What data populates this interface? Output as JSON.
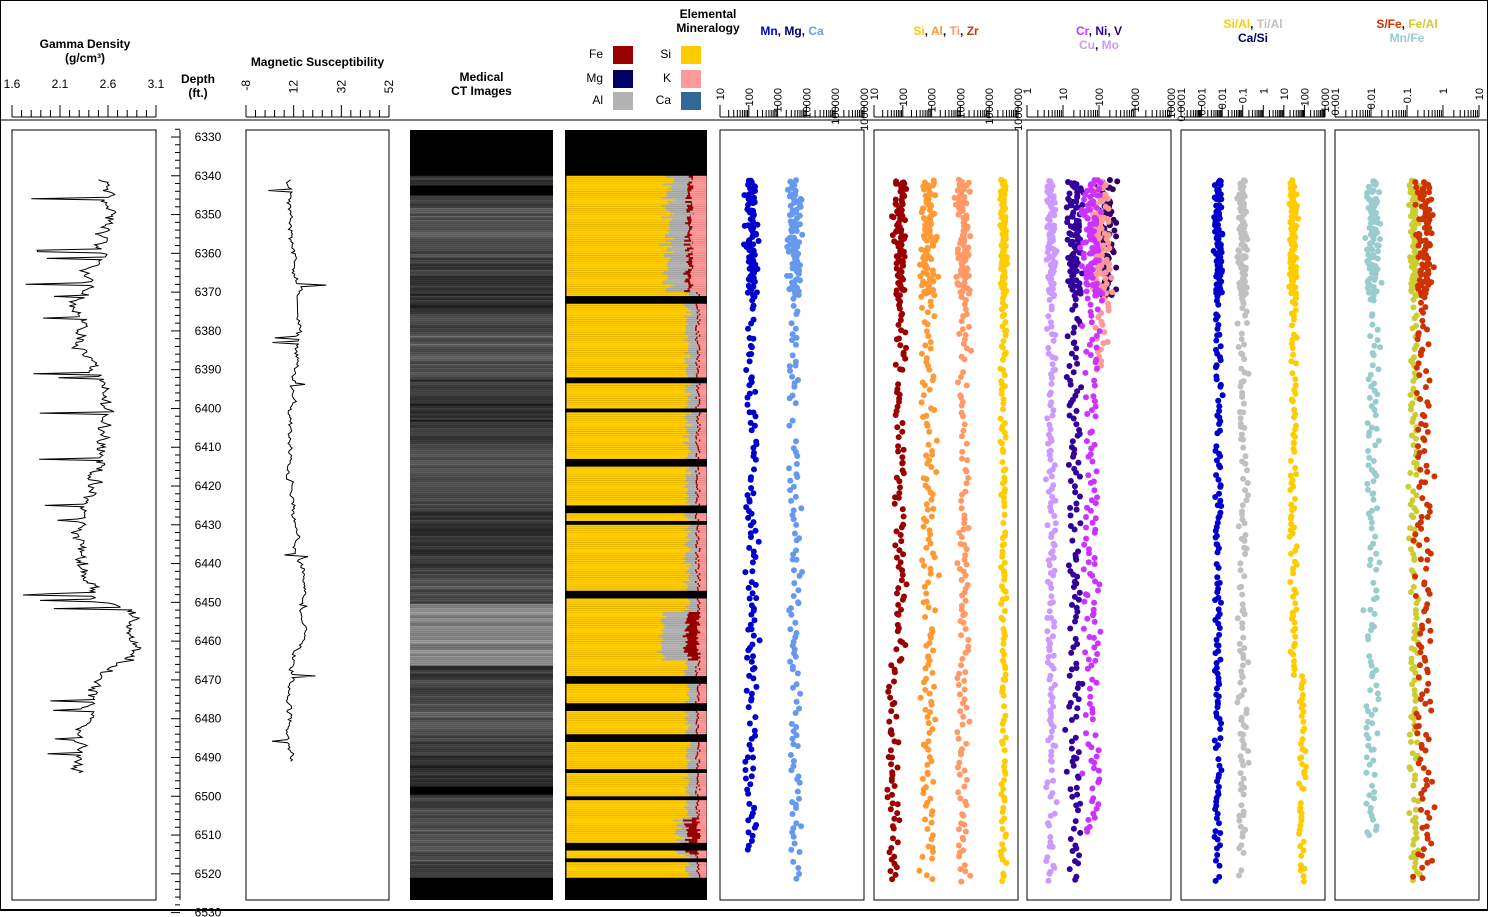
{
  "colors": {
    "Fe": "#990000",
    "Mg": "#000066",
    "Al": "#b3b3b3",
    "Si": "#ffcc00",
    "K": "#ff9999",
    "Ca": "#336699",
    "Mn": "#0000cc",
    "Ca_pt": "#6699ee",
    "Si_pt": "#ffcc00",
    "Al_pt": "#ff9933",
    "Ti_pt": "#ff9966",
    "Zr_pt": "#990000",
    "Cr": "#cc33ff",
    "Ni": "#330099",
    "V": "#330066",
    "Cu": "#cc99ff",
    "Mo": "#ff9999",
    "SiAl": "#ffcc00",
    "TiAl": "#c0c0c0",
    "CaSi": "#0000cc",
    "SFe": "#cc3300",
    "FeAl": "#cccc33",
    "MnFe": "#99cccc"
  },
  "chart_data": [
    {
      "type": "line",
      "panel": "gamma",
      "title_lines": [
        "Gamma Density",
        "(g/cm³)"
      ],
      "xticks": [
        "1.6",
        "2.1",
        "2.6",
        "3.1"
      ],
      "xlim": [
        1.6,
        3.1
      ],
      "ylim": [
        6328,
        6531
      ],
      "data_range": [
        6341,
        6494
      ]
    },
    {
      "type": "axis",
      "panel": "depth",
      "title_lines": [
        "Depth",
        "(ft.)"
      ],
      "yticks": [
        "6330",
        "6340",
        "6350",
        "6360",
        "6370",
        "6380",
        "6390",
        "6400",
        "6410",
        "6420",
        "6430",
        "6440",
        "6450",
        "6460",
        "6470",
        "6480",
        "6490",
        "6500",
        "6510",
        "6520",
        "6530"
      ]
    },
    {
      "type": "line",
      "panel": "magsus",
      "title_lines": [
        "Magnetic Susceptibility"
      ],
      "xticks": [
        "-8",
        "12",
        "32",
        "52"
      ],
      "xlim": [
        -8,
        52
      ],
      "ylim": [
        6328,
        6531
      ],
      "data_range": [
        6341,
        6491
      ]
    },
    {
      "type": "image",
      "panel": "ct",
      "title_lines": [
        "Medical",
        "CT Images"
      ],
      "core_range": [
        6338,
        6522
      ]
    },
    {
      "type": "area",
      "panel": "mineralogy",
      "title_lines": [
        "Elemental",
        "Mineralogy"
      ],
      "legend": [
        "Fe",
        "Si",
        "Mg",
        "K",
        "Al",
        "Ca"
      ],
      "core_range": [
        6338,
        6522
      ]
    },
    {
      "type": "scatter",
      "panel": "mnmgca",
      "title_parts": [
        [
          "Mn",
          "Mn"
        ],
        [
          ", ",
          "sep"
        ],
        [
          "Mg",
          "Mg"
        ],
        [
          ", ",
          "sep"
        ],
        [
          "Ca",
          "Ca_pt"
        ]
      ],
      "xticks": [
        "10",
        "100",
        "1000",
        "10000",
        "100000",
        "1000000"
      ],
      "log_decades": 6,
      "series": [
        {
          "name": "Mn",
          "color": "Mn",
          "range": [
            6341,
            6513
          ],
          "center": 0.22,
          "spread": 0.06
        },
        {
          "name": "Ca",
          "color": "Ca_pt",
          "range": [
            6341,
            6521
          ],
          "center": 0.52,
          "spread": 0.07
        }
      ]
    },
    {
      "type": "scatter",
      "panel": "sialtizr",
      "title_parts": [
        [
          "Si",
          "Si_pt"
        ],
        [
          ", ",
          "sep"
        ],
        [
          "Al",
          "Al_pt"
        ],
        [
          ", ",
          "sep"
        ],
        [
          "Ti",
          "Ti_pt"
        ],
        [
          ", ",
          "sep"
        ],
        [
          "Zr",
          "SFe"
        ]
      ],
      "xticks": [
        "10",
        "100",
        "1000",
        "10000",
        "100000",
        "1000000"
      ],
      "log_decades": 6,
      "series": [
        {
          "name": "Zr",
          "color": "Zr_pt",
          "range": [
            6341,
            6521
          ],
          "center": 0.18,
          "spread": 0.06
        },
        {
          "name": "Al",
          "color": "Al_pt",
          "range": [
            6341,
            6521
          ],
          "center": 0.38,
          "spread": 0.08
        },
        {
          "name": "Ti",
          "color": "Ti_pt",
          "range": [
            6341,
            6521
          ],
          "center": 0.62,
          "spread": 0.07
        },
        {
          "name": "Si",
          "color": "Si_pt",
          "range": [
            6341,
            6521
          ],
          "center": 0.9,
          "spread": 0.03
        }
      ]
    },
    {
      "type": "scatter",
      "panel": "crnivcumo",
      "title_parts": [
        [
          "Cr",
          "Cr"
        ],
        [
          ", ",
          "sep"
        ],
        [
          "Ni",
          "Ni"
        ],
        [
          ", ",
          "sep"
        ],
        [
          "V",
          "V"
        ],
        [
          "\n",
          "br"
        ],
        [
          "Cu",
          "Cu"
        ],
        [
          ", ",
          "sep"
        ],
        [
          "Mo",
          "Cu"
        ]
      ],
      "xticks": [
        "1",
        "10",
        "100",
        "1000",
        "10000"
      ],
      "log_decades": 4,
      "series": [
        {
          "name": "Cu",
          "color": "Cu",
          "range": [
            6341,
            6521
          ],
          "center": 0.17,
          "spread": 0.05
        },
        {
          "name": "Ni",
          "color": "Ni",
          "range": [
            6341,
            6521
          ],
          "center": 0.33,
          "spread": 0.07
        },
        {
          "name": "V",
          "color": "V",
          "range": [
            6341,
            6371
          ],
          "center": 0.55,
          "spread": 0.1
        },
        {
          "name": "Mo",
          "color": "Mo",
          "range": [
            6341,
            6390
          ],
          "center": 0.52,
          "spread": 0.1
        },
        {
          "name": "Cr",
          "color": "Cr",
          "range": [
            6341,
            6510
          ],
          "center": 0.45,
          "spread": 0.1
        }
      ]
    },
    {
      "type": "scatter",
      "panel": "ratios1",
      "title_parts": [
        [
          "Si/Al",
          "SiAl"
        ],
        [
          ", ",
          "sep"
        ],
        [
          "Ti/Al",
          "TiAl"
        ],
        [
          "\n",
          "br"
        ],
        [
          "Ca/Si",
          "Mg"
        ]
      ],
      "xticks": [
        "0.0001",
        "0.001",
        "0.01",
        "0.1",
        "1",
        "10",
        "100",
        "1000"
      ],
      "log_decades": 7,
      "series": [
        {
          "name": "Ca/Si",
          "color": "CaSi",
          "range": [
            6341,
            6521
          ],
          "center": 0.26,
          "spread": 0.04
        },
        {
          "name": "Ti/Al",
          "color": "TiAl",
          "range": [
            6341,
            6521
          ],
          "center": 0.43,
          "spread": 0.05
        },
        {
          "name": "Si/Al",
          "color": "SiAl",
          "range": [
            6341,
            6521
          ],
          "center": 0.78,
          "spread": 0.04
        }
      ]
    },
    {
      "type": "scatter",
      "panel": "ratios2",
      "title_parts": [
        [
          "S/Fe",
          "SFe"
        ],
        [
          ", ",
          "sep"
        ],
        [
          "Fe/Al",
          "FeAl"
        ],
        [
          "\n",
          "br"
        ],
        [
          "Mn/Fe",
          "MnFe"
        ]
      ],
      "xticks": [
        "0.001",
        "0.01",
        "0.1",
        "1",
        "10"
      ],
      "log_decades": 4,
      "series": [
        {
          "name": "Mn/Fe",
          "color": "MnFe",
          "range": [
            6341,
            6510
          ],
          "center": 0.26,
          "spread": 0.07
        },
        {
          "name": "Fe/Al",
          "color": "FeAl",
          "range": [
            6341,
            6521
          ],
          "center": 0.55,
          "spread": 0.05
        },
        {
          "name": "S/Fe",
          "color": "SFe",
          "range": [
            6341,
            6521
          ],
          "center": 0.62,
          "spread": 0.1
        }
      ]
    }
  ]
}
